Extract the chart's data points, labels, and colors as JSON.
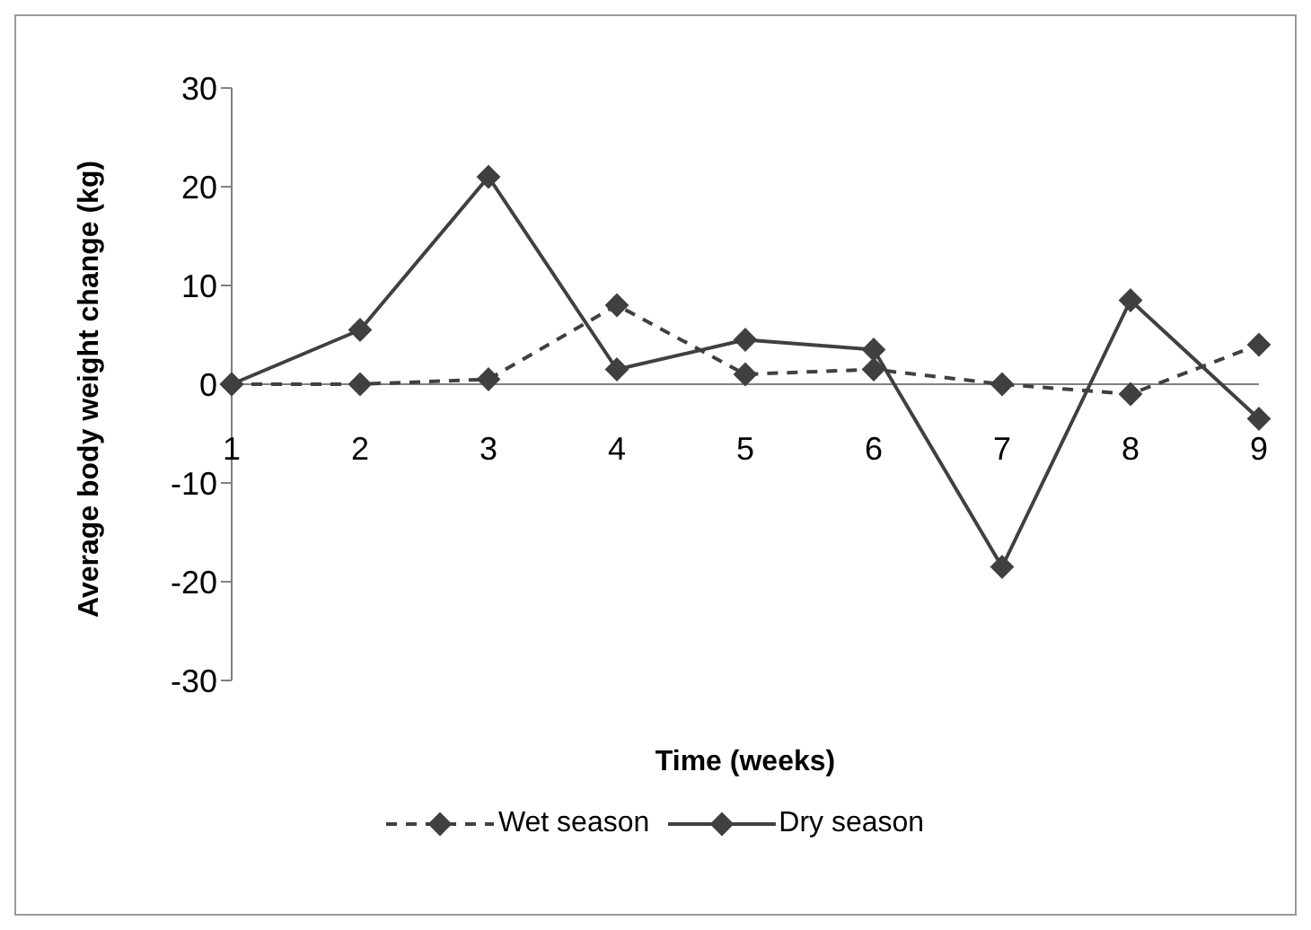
{
  "chart_data": {
    "type": "line",
    "xlabel": "Time (weeks)",
    "ylabel": "Average body weight change (kg)",
    "categories": [
      "1",
      "2",
      "3",
      "4",
      "5",
      "6",
      "7",
      "8",
      "9"
    ],
    "series": [
      {
        "name": "Wet season",
        "color": "#404040",
        "line_style": "dashed",
        "values": [
          0,
          0,
          0.5,
          8,
          1,
          1.5,
          0,
          -1,
          4
        ]
      },
      {
        "name": "Dry season",
        "color": "#404040",
        "line_style": "solid",
        "values": [
          0,
          5.5,
          21,
          1.5,
          4.5,
          3.5,
          -18.5,
          8.5,
          -3.5
        ]
      }
    ],
    "ylim": [
      -30,
      30
    ],
    "yticks": [
      -30,
      -20,
      -10,
      0,
      10,
      20,
      30
    ],
    "marker": "diamond",
    "legend": "bottom",
    "grid": false
  }
}
